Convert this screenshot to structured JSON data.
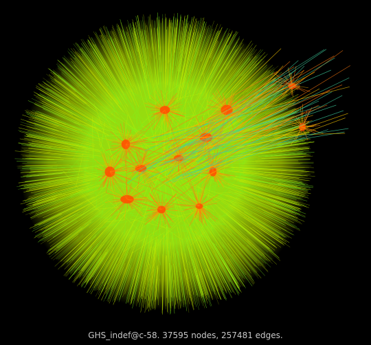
{
  "caption": "GHS_indef@c-58. 37595 nodes, 257481 edges.",
  "colors": {
    "background": "#000000",
    "caption": "#c8c8c8",
    "outer_edges": "#c8f000",
    "mid_edges": "#7cf41e",
    "hub_edges": "#ff7a10",
    "hub_core": "#ff4e00",
    "long_edges": "#3fd0a0"
  }
}
